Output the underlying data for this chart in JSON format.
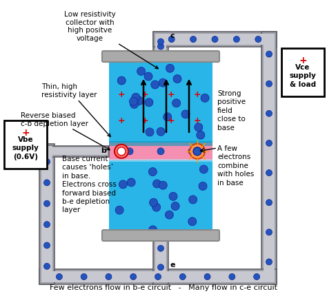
{
  "bottom_text": "Few electrons flow in b-e circuit   -   Many flow in c-e circuit",
  "labels": {
    "low_res": "Low resistivity\ncollector with\nhigh positve\nvoltage",
    "thin_high": "Thin, high\nresistivity layer",
    "rev_biased": "Reverse biased\nc-b depletion layer",
    "base_current": "Base current\ncauses ‘holes’\nin base.\nElectrons cross\nforward biased\nb-e depletion\nlayer",
    "strong_pos": "Strong\npositive\nfield\nclose to\nbase",
    "few_electrons": "A few\nelectrons\ncombine\nwith holes\nin base",
    "vbe": "Vbe\nsupply\n(0.6V)",
    "vce": "Vce\nsupply\n& load"
  },
  "collector_color": "#29b5e8",
  "emitter_color": "#29b5e8",
  "base_color": "#f48fb1",
  "pipe_outer": "#a0a0a8",
  "pipe_inner": "#c8c8d0",
  "pipe_dot": "#2255bb",
  "plus_color": "#dd0000"
}
